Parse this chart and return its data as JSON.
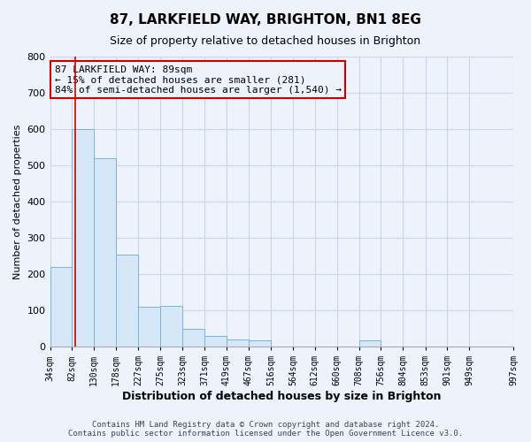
{
  "title": "87, LARKFIELD WAY, BRIGHTON, BN1 8EG",
  "subtitle": "Size of property relative to detached houses in Brighton",
  "xlabel": "Distribution of detached houses by size in Brighton",
  "ylabel": "Number of detached properties",
  "footer_line1": "Contains HM Land Registry data © Crown copyright and database right 2024.",
  "footer_line2": "Contains public sector information licensed under the Open Government Licence v3.0.",
  "annotation_line1": "87 LARKFIELD WAY: 89sqm",
  "annotation_line2": "← 15% of detached houses are smaller (281)",
  "annotation_line3": "84% of semi-detached houses are larger (1,540) →",
  "property_size": 89,
  "bar_left_edges": [
    34,
    82,
    130,
    178,
    227,
    275,
    323,
    371,
    419,
    467,
    516,
    564,
    612,
    660,
    708,
    756,
    804,
    853,
    901,
    949
  ],
  "bar_heights": [
    220,
    600,
    520,
    255,
    110,
    113,
    50,
    30,
    20,
    17,
    0,
    0,
    0,
    0,
    17,
    0,
    0,
    0,
    0,
    0
  ],
  "bar_fill_color": "#d6e8f7",
  "bar_edge_color": "#7ab4d8",
  "red_line_color": "#cc0000",
  "annotation_box_color": "#cc0000",
  "ylim": [
    0,
    800
  ],
  "yticks": [
    0,
    100,
    200,
    300,
    400,
    500,
    600,
    700,
    800
  ],
  "x_labels": [
    "34sqm",
    "82sqm",
    "130sqm",
    "178sqm",
    "227sqm",
    "275sqm",
    "323sqm",
    "371sqm",
    "419sqm",
    "467sqm",
    "516sqm",
    "564sqm",
    "612sqm",
    "660sqm",
    "708sqm",
    "756sqm",
    "804sqm",
    "853sqm",
    "901sqm",
    "949sqm",
    "997sqm"
  ],
  "grid_color": "#c8d8ea",
  "background_color": "#edf2fb",
  "tick_label_fontsize": 7,
  "ylabel_fontsize": 8,
  "xlabel_fontsize": 9,
  "title_fontsize": 11,
  "subtitle_fontsize": 9,
  "annotation_fontsize": 8,
  "footer_fontsize": 6.5
}
